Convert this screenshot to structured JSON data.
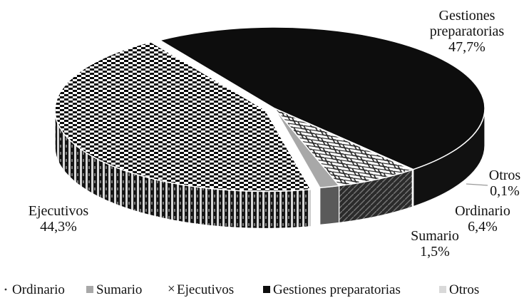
{
  "chart_data": {
    "type": "pie",
    "style": "3d-exploded",
    "title": "",
    "categories": [
      "Ordinario",
      "Sumario",
      "Ejecutivos",
      "Gestiones preparatorias",
      "Otros"
    ],
    "values": [
      6.4,
      1.5,
      44.3,
      47.7,
      0.1
    ],
    "value_labels": [
      "6,4%",
      "1,5%",
      "44,3%",
      "47,7%",
      "0,1%"
    ],
    "label_lines": [
      [
        "Ordinario",
        "6,4%"
      ],
      [
        "Sumario",
        "1,5%"
      ],
      [
        "Ejecutivos",
        "44,3%"
      ],
      [
        "Gestiones",
        "preparatorias",
        "47,7%"
      ],
      [
        "Otros",
        "0,1%"
      ]
    ],
    "legend": {
      "position": "bottom",
      "entries": [
        "Ordinario",
        "Sumario",
        "Ejecutivos",
        "Gestiones preparatorias",
        "Otros"
      ]
    },
    "colors": {
      "Ordinario": "#2a2a2a",
      "Sumario": "#a8a8a8",
      "Ejecutivos": "#000000",
      "Gestiones preparatorias": "#0d0d0d",
      "Otros": "#d9d9d9"
    }
  }
}
